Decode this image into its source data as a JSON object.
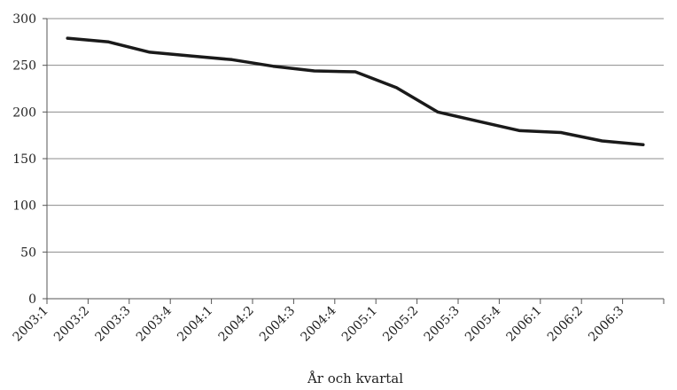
{
  "chart_data": {
    "type": "line",
    "categories": [
      "2003:1",
      "2003:2",
      "2003:3",
      "2003:4",
      "2004:1",
      "2004:2",
      "2004:3",
      "2004:4",
      "2005:1",
      "2005:2",
      "2005:3",
      "2005:4",
      "2006:1",
      "2006:2",
      "2006:3"
    ],
    "series": [
      {
        "values": [
          279,
          275,
          264,
          260,
          256,
          249,
          244,
          243,
          226,
          200,
          190,
          180,
          178,
          169,
          165
        ]
      }
    ],
    "xlabel": "År och kvartal",
    "ylabel": "",
    "ylim": [
      0,
      300
    ],
    "yticks": [
      0,
      50,
      100,
      150,
      200,
      250,
      300
    ],
    "grid": true,
    "line_color": "#1a1a1a"
  }
}
